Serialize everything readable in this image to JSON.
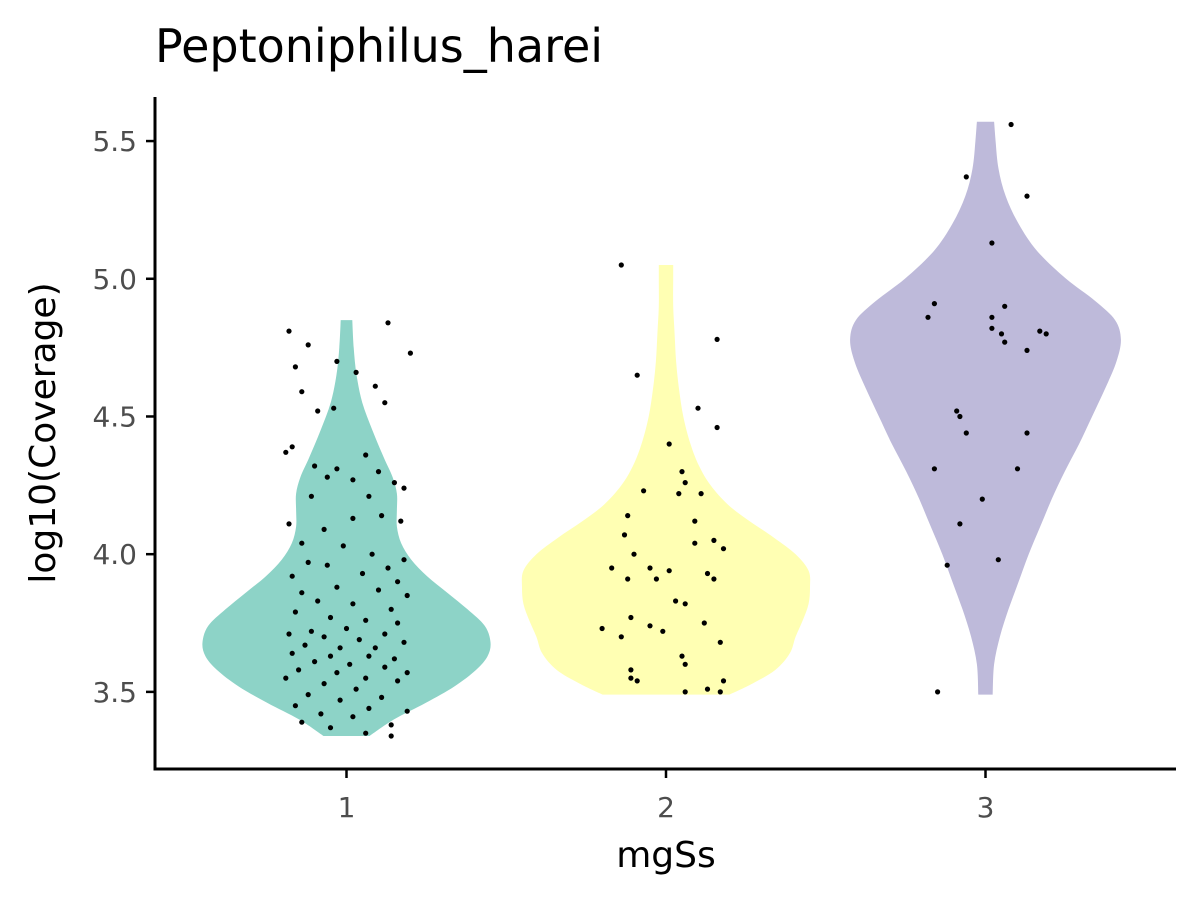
{
  "chart_data": {
    "type": "violin",
    "title": "Peptoniphilus_harei",
    "xlabel": "mgSs",
    "ylabel": "log10(Coverage)",
    "ylim": [
      3.22,
      5.66
    ],
    "y_ticks": [
      "3.5",
      "4.0",
      "4.5",
      "5.0",
      "5.5"
    ],
    "categories": [
      "1",
      "2",
      "3"
    ],
    "grid": false,
    "legend": "none",
    "groups": [
      {
        "category": "1",
        "color": "#8dd3c7",
        "density": [
          [
            3.34,
            0.16
          ],
          [
            3.4,
            0.33
          ],
          [
            3.46,
            0.55
          ],
          [
            3.52,
            0.75
          ],
          [
            3.58,
            0.9
          ],
          [
            3.63,
            0.98
          ],
          [
            3.68,
            1.0
          ],
          [
            3.74,
            0.96
          ],
          [
            3.8,
            0.84
          ],
          [
            3.86,
            0.7
          ],
          [
            3.92,
            0.56
          ],
          [
            3.98,
            0.45
          ],
          [
            4.04,
            0.38
          ],
          [
            4.1,
            0.35
          ],
          [
            4.16,
            0.35
          ],
          [
            4.22,
            0.35
          ],
          [
            4.28,
            0.32
          ],
          [
            4.35,
            0.26
          ],
          [
            4.45,
            0.18
          ],
          [
            4.55,
            0.11
          ],
          [
            4.65,
            0.07
          ],
          [
            4.75,
            0.05
          ],
          [
            4.85,
            0.04
          ]
        ],
        "points": [
          [
            0.82,
            4.81
          ],
          [
            0.88,
            4.76
          ],
          [
            1.03,
            4.66
          ],
          [
            1.2,
            4.73
          ],
          [
            1.13,
            4.84
          ],
          [
            0.97,
            4.7
          ],
          [
            0.84,
            4.68
          ],
          [
            0.86,
            4.59
          ],
          [
            0.91,
            4.52
          ],
          [
            0.96,
            4.53
          ],
          [
            1.09,
            4.61
          ],
          [
            1.12,
            4.55
          ],
          [
            0.83,
            4.39
          ],
          [
            0.81,
            4.37
          ],
          [
            0.9,
            4.32
          ],
          [
            0.97,
            4.31
          ],
          [
            1.06,
            4.36
          ],
          [
            1.1,
            4.3
          ],
          [
            1.15,
            4.26
          ],
          [
            0.94,
            4.28
          ],
          [
            1.02,
            4.27
          ],
          [
            1.18,
            4.24
          ],
          [
            0.89,
            4.21
          ],
          [
            1.07,
            4.21
          ],
          [
            0.82,
            4.11
          ],
          [
            0.93,
            4.09
          ],
          [
            1.11,
            4.14
          ],
          [
            1.17,
            4.12
          ],
          [
            1.02,
            4.13
          ],
          [
            0.86,
            4.04
          ],
          [
            0.99,
            4.03
          ],
          [
            1.08,
            4.0
          ],
          [
            1.18,
            3.98
          ],
          [
            0.88,
            3.97
          ],
          [
            0.94,
            3.96
          ],
          [
            1.05,
            3.93
          ],
          [
            1.13,
            3.95
          ],
          [
            0.83,
            3.92
          ],
          [
            1.16,
            3.9
          ],
          [
            0.97,
            3.88
          ],
          [
            1.1,
            3.87
          ],
          [
            0.86,
            3.86
          ],
          [
            1.19,
            3.85
          ],
          [
            0.91,
            3.83
          ],
          [
            1.02,
            3.82
          ],
          [
            1.14,
            3.8
          ],
          [
            0.84,
            3.79
          ],
          [
            0.95,
            3.77
          ],
          [
            1.06,
            3.76
          ],
          [
            1.16,
            3.75
          ],
          [
            0.89,
            3.72
          ],
          [
            1.0,
            3.73
          ],
          [
            1.12,
            3.71
          ],
          [
            0.82,
            3.71
          ],
          [
            0.93,
            3.7
          ],
          [
            1.04,
            3.69
          ],
          [
            1.18,
            3.68
          ],
          [
            0.87,
            3.67
          ],
          [
            0.98,
            3.66
          ],
          [
            1.09,
            3.66
          ],
          [
            0.83,
            3.64
          ],
          [
            0.95,
            3.63
          ],
          [
            1.07,
            3.63
          ],
          [
            1.15,
            3.62
          ],
          [
            0.9,
            3.61
          ],
          [
            1.01,
            3.6
          ],
          [
            1.12,
            3.59
          ],
          [
            0.85,
            3.58
          ],
          [
            0.97,
            3.57
          ],
          [
            1.19,
            3.57
          ],
          [
            1.06,
            3.55
          ],
          [
            0.81,
            3.55
          ],
          [
            0.93,
            3.53
          ],
          [
            1.16,
            3.54
          ],
          [
            1.03,
            3.51
          ],
          [
            0.88,
            3.49
          ],
          [
            1.11,
            3.48
          ],
          [
            0.98,
            3.47
          ],
          [
            0.84,
            3.45
          ],
          [
            1.07,
            3.44
          ],
          [
            1.19,
            3.43
          ],
          [
            0.92,
            3.42
          ],
          [
            1.02,
            3.41
          ],
          [
            0.86,
            3.39
          ],
          [
            1.14,
            3.38
          ],
          [
            0.95,
            3.37
          ],
          [
            1.06,
            3.35
          ],
          [
            1.14,
            3.34
          ]
        ]
      },
      {
        "category": "2",
        "color": "#ffffb3",
        "density": [
          [
            3.49,
            0.44
          ],
          [
            3.53,
            0.6
          ],
          [
            3.58,
            0.76
          ],
          [
            3.64,
            0.86
          ],
          [
            3.7,
            0.9
          ],
          [
            3.76,
            0.95
          ],
          [
            3.82,
            0.99
          ],
          [
            3.88,
            1.0
          ],
          [
            3.94,
            0.99
          ],
          [
            4.0,
            0.9
          ],
          [
            4.06,
            0.75
          ],
          [
            4.12,
            0.58
          ],
          [
            4.18,
            0.43
          ],
          [
            4.25,
            0.31
          ],
          [
            4.32,
            0.23
          ],
          [
            4.4,
            0.17
          ],
          [
            4.5,
            0.12
          ],
          [
            4.6,
            0.09
          ],
          [
            4.7,
            0.07
          ],
          [
            4.8,
            0.06
          ],
          [
            4.9,
            0.05
          ],
          [
            5.0,
            0.05
          ],
          [
            5.05,
            0.05
          ]
        ],
        "points": [
          [
            1.86,
            5.05
          ],
          [
            2.16,
            4.78
          ],
          [
            1.91,
            4.65
          ],
          [
            2.1,
            4.53
          ],
          [
            2.16,
            4.46
          ],
          [
            2.01,
            4.4
          ],
          [
            2.05,
            4.3
          ],
          [
            2.06,
            4.26
          ],
          [
            2.11,
            4.22
          ],
          [
            1.93,
            4.23
          ],
          [
            2.04,
            4.22
          ],
          [
            1.88,
            4.14
          ],
          [
            2.09,
            4.12
          ],
          [
            1.87,
            4.07
          ],
          [
            2.09,
            4.04
          ],
          [
            2.15,
            4.05
          ],
          [
            2.18,
            4.02
          ],
          [
            1.9,
            4.0
          ],
          [
            1.83,
            3.95
          ],
          [
            1.95,
            3.95
          ],
          [
            2.01,
            3.94
          ],
          [
            2.13,
            3.93
          ],
          [
            1.88,
            3.91
          ],
          [
            1.97,
            3.91
          ],
          [
            2.15,
            3.91
          ],
          [
            2.03,
            3.83
          ],
          [
            2.06,
            3.82
          ],
          [
            1.89,
            3.77
          ],
          [
            2.12,
            3.75
          ],
          [
            1.95,
            3.74
          ],
          [
            1.8,
            3.73
          ],
          [
            1.99,
            3.72
          ],
          [
            1.86,
            3.7
          ],
          [
            2.17,
            3.68
          ],
          [
            2.05,
            3.63
          ],
          [
            2.06,
            3.6
          ],
          [
            1.89,
            3.58
          ],
          [
            1.89,
            3.55
          ],
          [
            1.91,
            3.54
          ],
          [
            2.18,
            3.54
          ],
          [
            2.13,
            3.51
          ],
          [
            2.17,
            3.5
          ],
          [
            2.06,
            3.5
          ]
        ]
      },
      {
        "category": "3",
        "color": "#bebada",
        "density": [
          [
            3.49,
            0.05
          ],
          [
            3.6,
            0.06
          ],
          [
            3.7,
            0.1
          ],
          [
            3.8,
            0.16
          ],
          [
            3.9,
            0.23
          ],
          [
            4.0,
            0.3
          ],
          [
            4.1,
            0.38
          ],
          [
            4.2,
            0.46
          ],
          [
            4.3,
            0.55
          ],
          [
            4.4,
            0.65
          ],
          [
            4.5,
            0.74
          ],
          [
            4.6,
            0.83
          ],
          [
            4.7,
            0.91
          ],
          [
            4.78,
            0.94
          ],
          [
            4.85,
            0.9
          ],
          [
            4.92,
            0.76
          ],
          [
            5.0,
            0.56
          ],
          [
            5.1,
            0.36
          ],
          [
            5.2,
            0.23
          ],
          [
            5.3,
            0.14
          ],
          [
            5.4,
            0.09
          ],
          [
            5.5,
            0.07
          ],
          [
            5.57,
            0.06
          ]
        ],
        "points": [
          [
            3.08,
            5.56
          ],
          [
            2.94,
            5.37
          ],
          [
            3.13,
            5.3
          ],
          [
            3.02,
            5.13
          ],
          [
            2.84,
            4.91
          ],
          [
            2.82,
            4.86
          ],
          [
            3.06,
            4.9
          ],
          [
            3.02,
            4.86
          ],
          [
            3.02,
            4.82
          ],
          [
            3.05,
            4.8
          ],
          [
            3.17,
            4.81
          ],
          [
            3.19,
            4.8
          ],
          [
            3.06,
            4.77
          ],
          [
            3.13,
            4.74
          ],
          [
            2.91,
            4.52
          ],
          [
            2.92,
            4.5
          ],
          [
            2.94,
            4.44
          ],
          [
            3.13,
            4.44
          ],
          [
            2.84,
            4.31
          ],
          [
            3.1,
            4.31
          ],
          [
            2.99,
            4.2
          ],
          [
            2.92,
            4.11
          ],
          [
            2.88,
            3.96
          ],
          [
            3.04,
            3.98
          ],
          [
            2.85,
            3.5
          ]
        ]
      }
    ]
  }
}
